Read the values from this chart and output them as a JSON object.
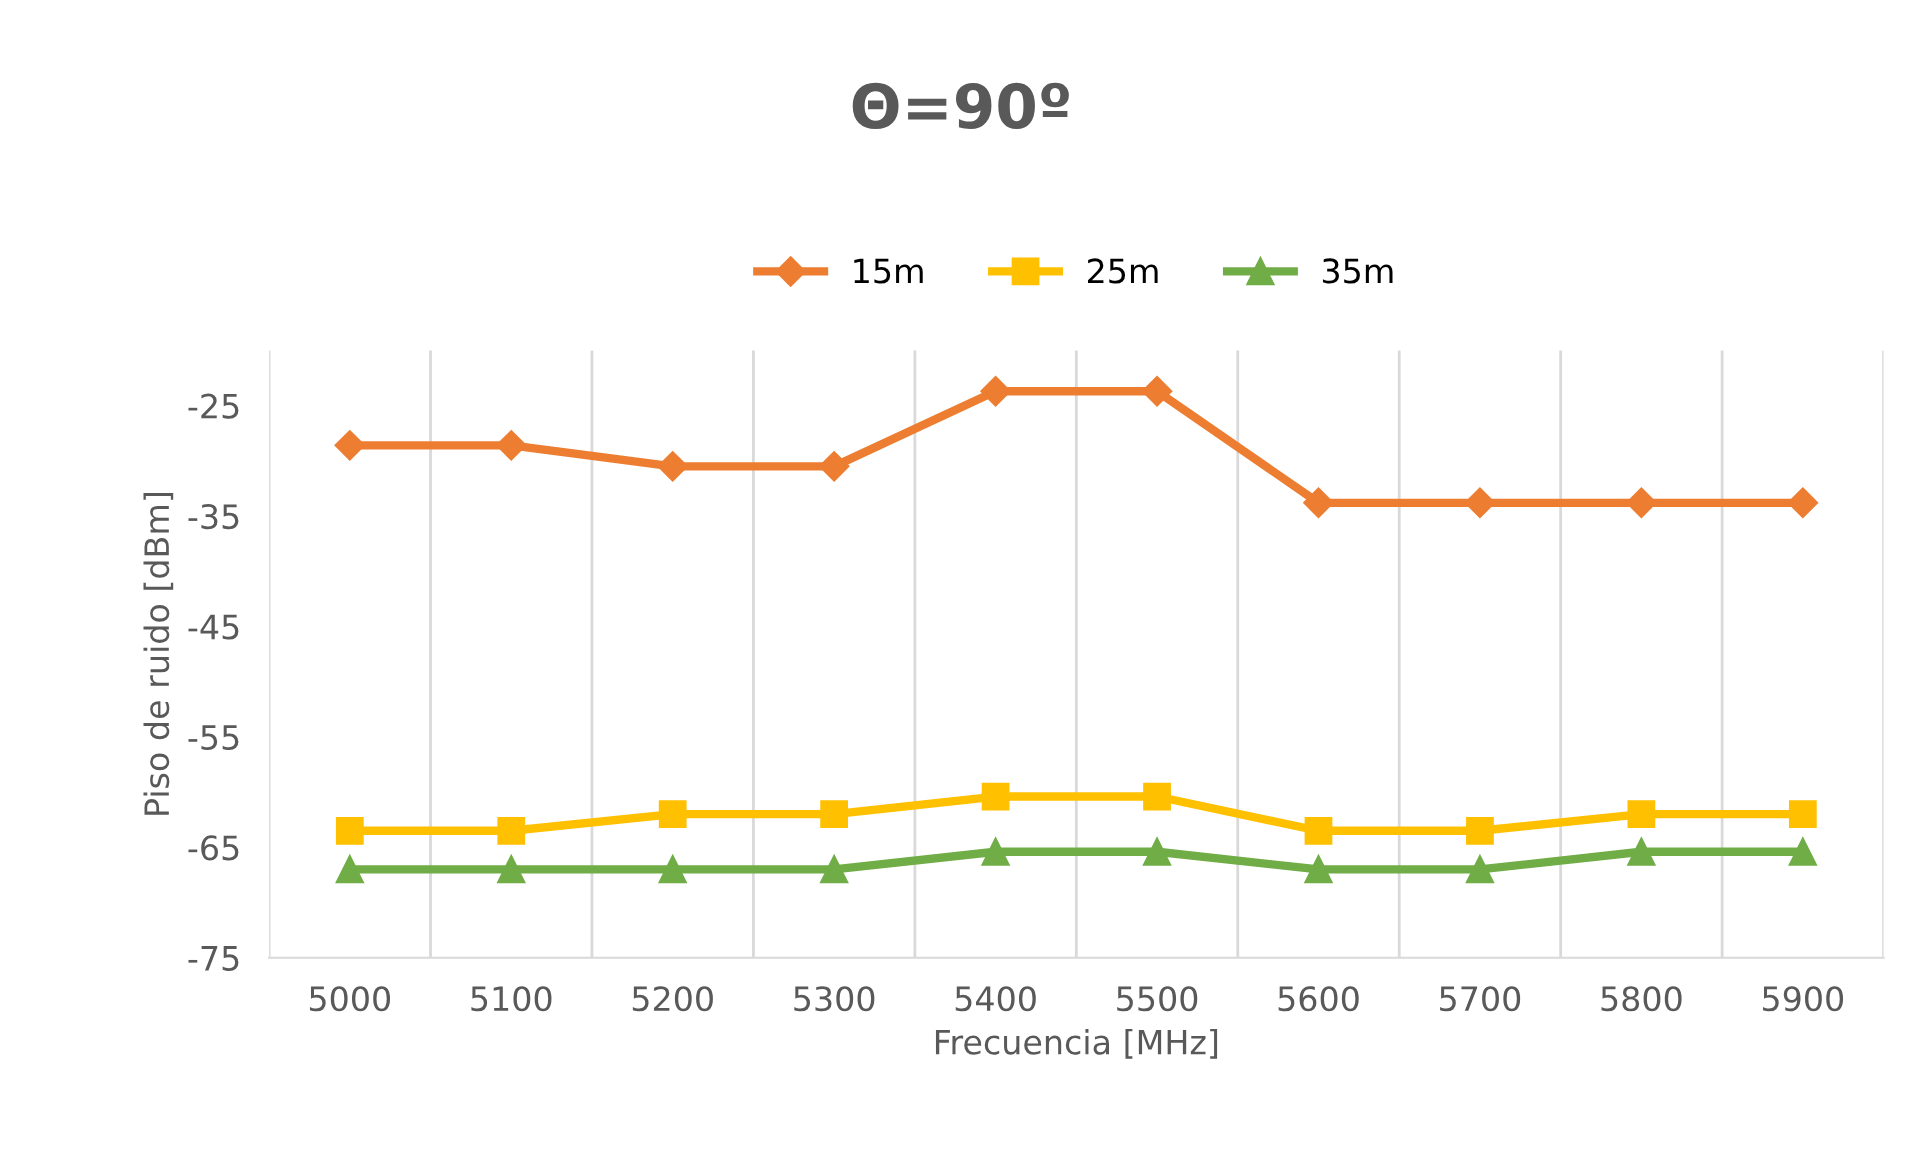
{
  "chart_data": {
    "type": "line",
    "title": "Θ=90º",
    "xlabel": "Frecuencia [MHz]",
    "ylabel": "Piso de ruido [dBm]",
    "categories": [
      "5000",
      "5100",
      "5200",
      "5300",
      "5400",
      "5500",
      "5600",
      "5700",
      "5800",
      "5900"
    ],
    "series": [
      {
        "name": "15m",
        "color": "#ed7d31",
        "marker": "diamond",
        "values": [
          -28.6,
          -28.6,
          -30.5,
          -30.5,
          -23.7,
          -23.7,
          -33.8,
          -33.8,
          -33.8,
          -33.8
        ]
      },
      {
        "name": "25m",
        "color": "#ffc000",
        "marker": "square",
        "values": [
          -63.5,
          -63.5,
          -62,
          -62,
          -60.4,
          -60.4,
          -63.5,
          -63.5,
          -62,
          -62
        ]
      },
      {
        "name": "35m",
        "color": "#70ad47",
        "marker": "triangle",
        "values": [
          -67,
          -67,
          -67,
          -67,
          -65.4,
          -65.4,
          -67,
          -67,
          -65.4,
          -65.4
        ]
      }
    ],
    "ylim": [
      -75,
      -20
    ],
    "yticks": [
      -75,
      -65,
      -55,
      -45,
      -35,
      -25
    ],
    "grid": "x",
    "legend": "top",
    "line_style": "solid"
  }
}
